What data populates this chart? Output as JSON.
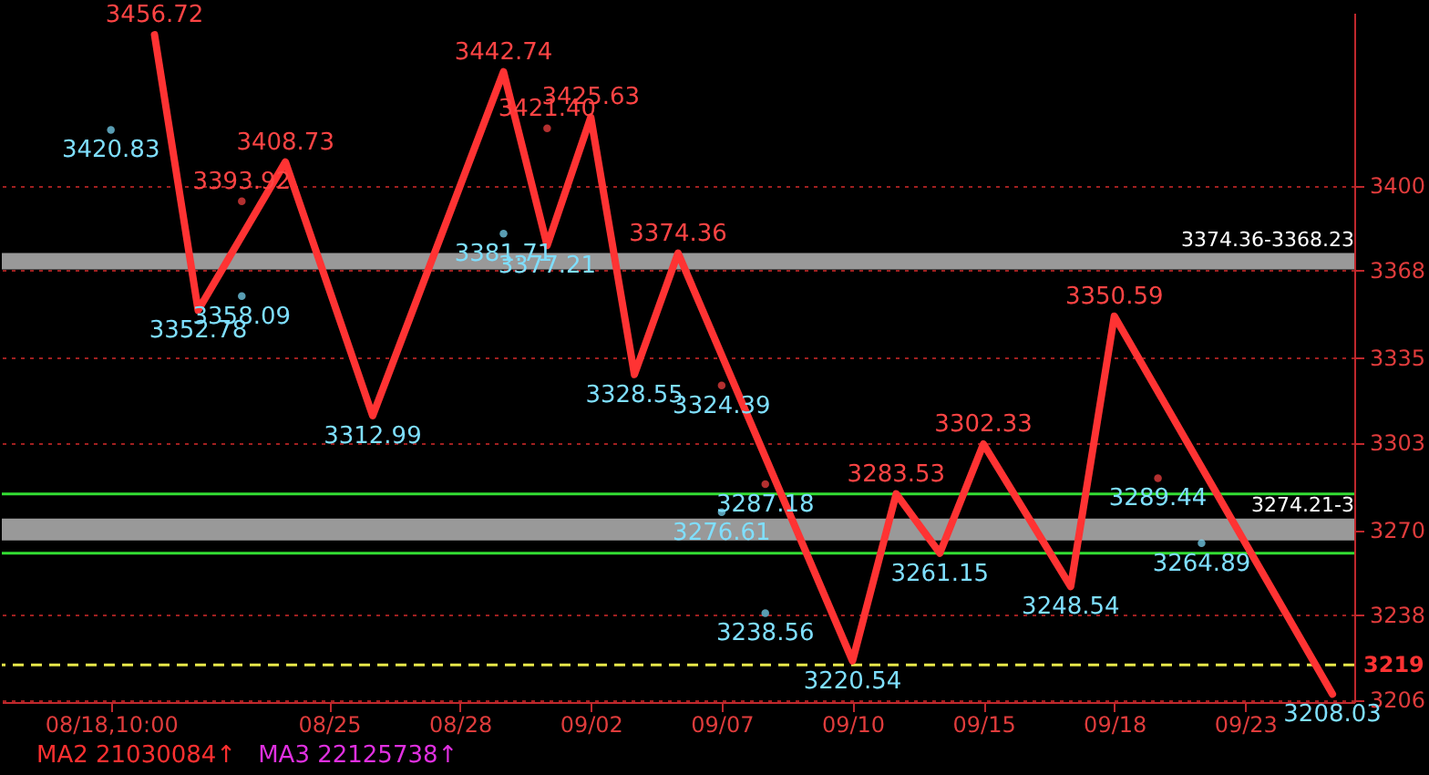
{
  "chart_data": {
    "type": "line",
    "categories": [
      null,
      null,
      "08/18,10:00",
      null,
      null,
      null,
      null,
      "08/25",
      null,
      null,
      "08/28",
      null,
      null,
      "09/02",
      null,
      null,
      "09/07",
      null,
      null,
      "09/10",
      null,
      null,
      "09/15",
      null,
      null,
      "09/18",
      null,
      null,
      "09/23",
      null,
      null
    ],
    "series": [
      {
        "color": "#ff3333",
        "values": [
          null,
          null,
          null,
          3456.72,
          3352.78,
          null,
          3408.73,
          null,
          3312.99,
          null,
          null,
          3442.74,
          3377.21,
          3425.63,
          3328.55,
          3374.36,
          null,
          null,
          null,
          3220.54,
          3283.53,
          3261.15,
          3302.33,
          null,
          3248.54,
          3350.59,
          null,
          null,
          null,
          null,
          3208.03
        ]
      },
      {
        "type": "scatter",
        "color": "#ff4444",
        "values": [
          null,
          null,
          null,
          null,
          null,
          3393.92,
          null,
          null,
          null,
          null,
          null,
          null,
          3421.4,
          null,
          null,
          null,
          3324.39,
          3287.18,
          null,
          null,
          null,
          null,
          null,
          null,
          null,
          null,
          3289.44,
          null,
          null,
          null,
          null
        ],
        "value_labels": [
          null,
          null,
          null,
          null,
          null,
          "3393.92",
          null,
          null,
          null,
          null,
          null,
          null,
          "3421.40",
          null,
          null,
          null,
          "3324.39",
          "3287.18",
          null,
          null,
          null,
          null,
          null,
          null,
          null,
          null,
          "3289.44",
          null,
          null,
          null,
          null
        ]
      },
      {
        "type": "scatter",
        "color": "#7fdfff",
        "values": [
          null,
          null,
          3420.83,
          null,
          null,
          3358.09,
          null,
          null,
          null,
          null,
          null,
          3381.71,
          null,
          null,
          null,
          null,
          3276.61,
          3238.56,
          null,
          null,
          null,
          null,
          null,
          null,
          null,
          null,
          null,
          3264.89,
          null,
          null,
          null
        ]
      }
    ],
    "data_labels": true,
    "line_style": "solid",
    "ylim": [
      3205,
      3465
    ],
    "yticks": [
      3206,
      3238,
      3270,
      3303,
      3335,
      3368,
      3400
    ],
    "grid": "y",
    "ref_lines": [
      {
        "axis": "y",
        "value": 3283.53,
        "color": "#33dd33",
        "line_style": "solid"
      },
      {
        "axis": "y",
        "value": 3261.15,
        "color": "#33dd33",
        "line_style": "solid"
      },
      {
        "axis": "y",
        "value": 3219,
        "label": "3219",
        "color": "#e8e84a",
        "line_style": "dashed"
      }
    ],
    "bands": [
      {
        "axis": "y",
        "from": 3368.23,
        "to": 3374.36,
        "label": "3374.36-3368.23",
        "color": "#999999"
      },
      {
        "axis": "y",
        "from": 3266,
        "to": 3274.21,
        "label": "3274.21-3",
        "color": "#999999"
      }
    ],
    "annotations": [
      "MA2 21030084↑",
      "MA3 22125738↑"
    ]
  }
}
